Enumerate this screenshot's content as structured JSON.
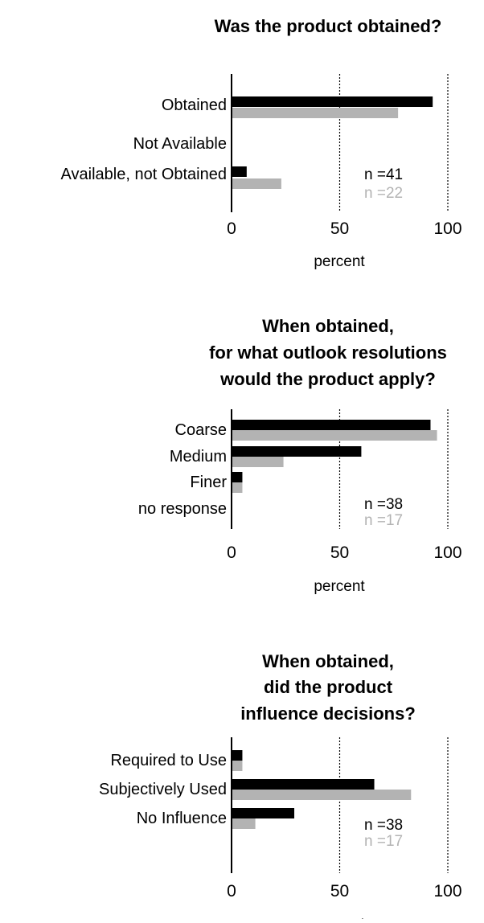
{
  "chart_data": [
    {
      "type": "bar",
      "orientation": "horizontal",
      "title": "Was the product obtained?",
      "title_lines": [
        "Was the product obtained?"
      ],
      "categories": [
        "Obtained",
        "Not Available",
        "Available, not Obtained"
      ],
      "series": [
        {
          "values": [
            93,
            0,
            7
          ],
          "color": "#000000"
        },
        {
          "values": [
            77,
            0,
            23
          ],
          "color": "#b3b3b3"
        }
      ],
      "n_labels": [
        {
          "text": "n =41",
          "color": "#000000"
        },
        {
          "text": "n =22",
          "color": "#b3b3b3"
        }
      ],
      "xlim": [
        0,
        100
      ],
      "ticks": [
        0,
        50,
        100
      ],
      "tick_labels": [
        "0",
        "50",
        "100"
      ],
      "xlabel": "percent",
      "reference_lines": [
        50,
        100
      ]
    },
    {
      "type": "bar",
      "orientation": "horizontal",
      "title": "When obtained, for what outlook resolutions would the product apply?",
      "title_lines": [
        "When obtained,",
        "for what outlook resolutions",
        "would the product apply?"
      ],
      "categories": [
        "Coarse",
        "Medium",
        "Finer",
        "no response"
      ],
      "series": [
        {
          "values": [
            92,
            60,
            5,
            0
          ],
          "color": "#000000"
        },
        {
          "values": [
            95,
            24,
            5,
            0
          ],
          "color": "#b3b3b3"
        }
      ],
      "n_labels": [
        {
          "text": "n =38",
          "color": "#000000"
        },
        {
          "text": "n =17",
          "color": "#b3b3b3"
        }
      ],
      "xlim": [
        0,
        100
      ],
      "ticks": [
        0,
        50,
        100
      ],
      "tick_labels": [
        "0",
        "50",
        "100"
      ],
      "xlabel": "percent",
      "reference_lines": [
        50,
        100
      ]
    },
    {
      "type": "bar",
      "orientation": "horizontal",
      "title": "When obtained, did the product influence decisions?",
      "title_lines": [
        "When obtained,",
        "did the product",
        "influence decisions?"
      ],
      "categories": [
        "Required to Use",
        "Subjectively Used",
        "No Influence"
      ],
      "series": [
        {
          "values": [
            5,
            66,
            29
          ],
          "color": "#000000"
        },
        {
          "values": [
            5,
            83,
            11
          ],
          "color": "#b3b3b3"
        }
      ],
      "n_labels": [
        {
          "text": "n =38",
          "color": "#000000"
        },
        {
          "text": "n =17",
          "color": "#b3b3b3"
        }
      ],
      "xlim": [
        0,
        100
      ],
      "ticks": [
        0,
        50,
        100
      ],
      "tick_labels": [
        "0",
        "50",
        "100"
      ],
      "xlabel": "percent",
      "reference_lines": [
        50,
        100
      ]
    }
  ]
}
